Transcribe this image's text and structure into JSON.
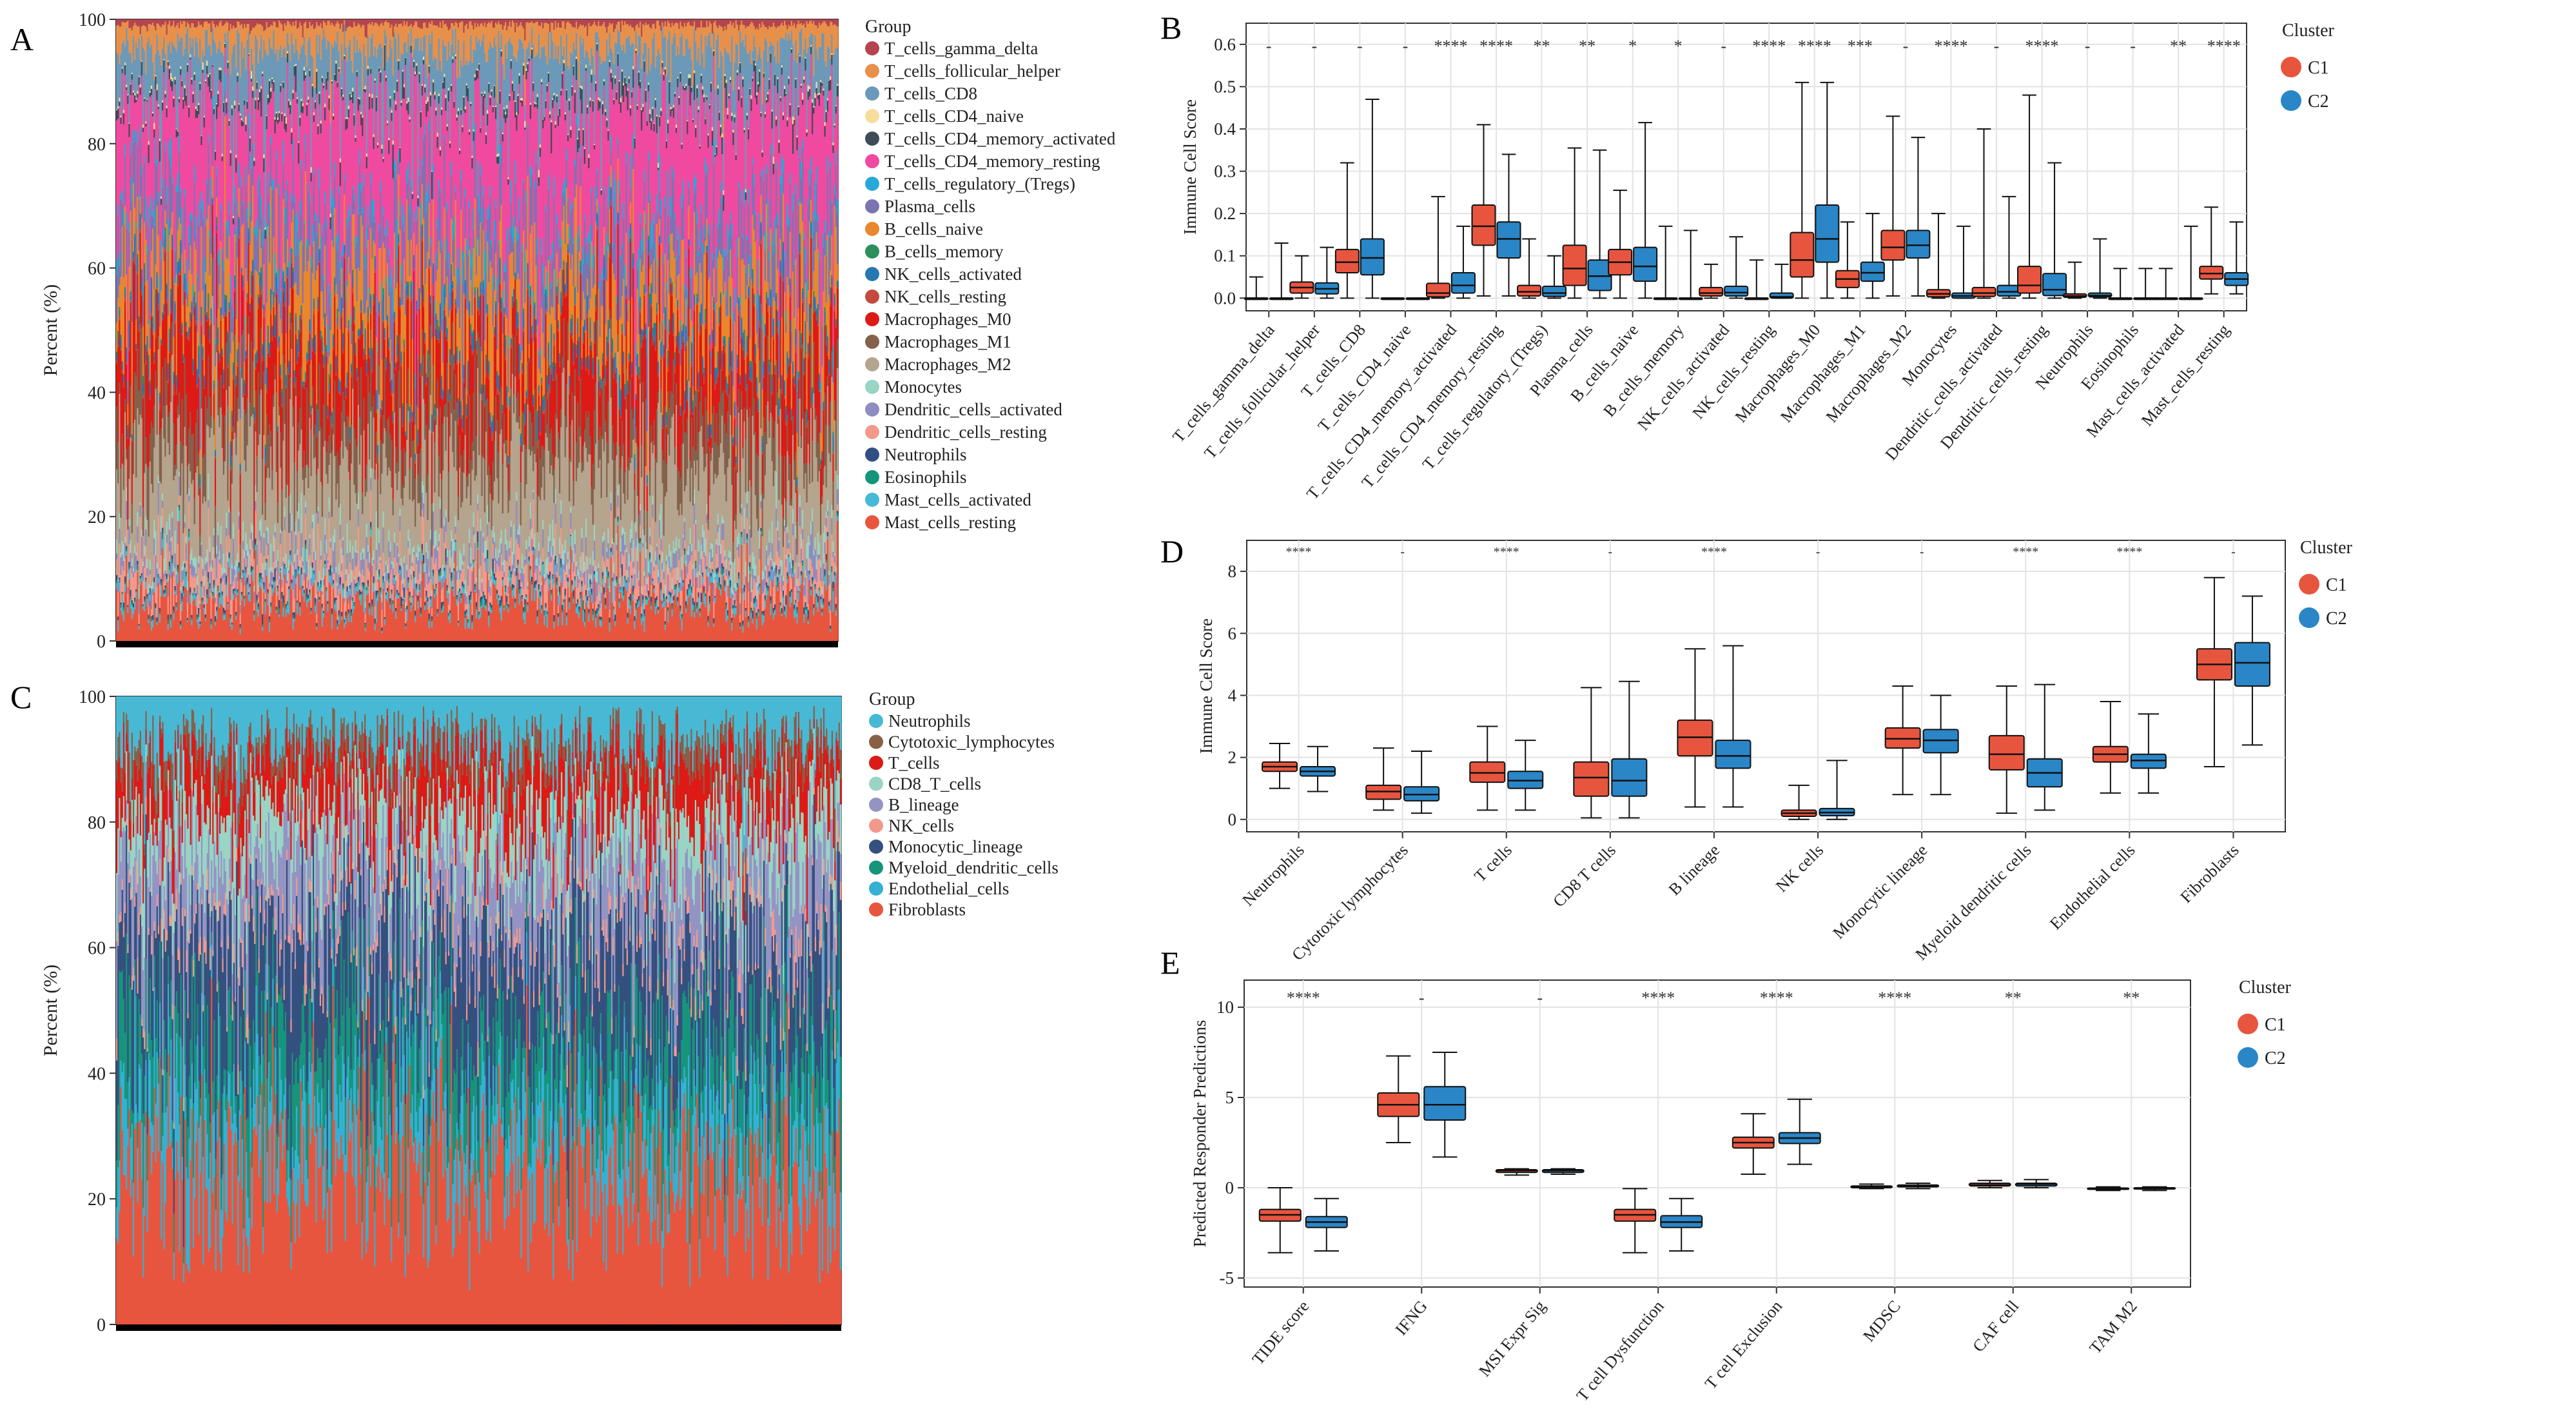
{
  "panel_letters": {
    "a": "A",
    "b": "B",
    "c": "C",
    "d": "D",
    "e": "E"
  },
  "colors": {
    "c1": "#E8553E",
    "c2": "#2A86C7",
    "grid": "#e3e3e3",
    "axis": "#333333",
    "tick_band": "#000000"
  },
  "chart_data": [
    {
      "id": "A",
      "type": "bar",
      "stacked": true,
      "ylabel": "Percent (%)",
      "ylim": [
        0,
        100
      ],
      "yticks": [
        0,
        20,
        40,
        60,
        80,
        100
      ],
      "n_samples": 520,
      "legend_title": "Group",
      "legend_position": "right",
      "groups": [
        {
          "name": "T_cells_gamma_delta",
          "color": "#B4454F",
          "mean": 0.8
        },
        {
          "name": "T_cells_follicular_helper",
          "color": "#E8904A",
          "mean": 3.5
        },
        {
          "name": "T_cells_CD8",
          "color": "#6D99B8",
          "mean": 7.0
        },
        {
          "name": "T_cells_CD4_naive",
          "color": "#F6DD9B",
          "mean": 0.3
        },
        {
          "name": "T_cells_CD4_memory_activated",
          "color": "#3D4C56",
          "mean": 1.2
        },
        {
          "name": "T_cells_CD4_memory_resting",
          "color": "#F04AA0",
          "mean": 16.0
        },
        {
          "name": "T_cells_regulatory_(Tregs)",
          "color": "#27A8D8",
          "mean": 1.8
        },
        {
          "name": "Plasma_cells",
          "color": "#7A75B2",
          "mean": 6.5
        },
        {
          "name": "B_cells_naive",
          "color": "#E8872E",
          "mean": 8.0
        },
        {
          "name": "B_cells_memory",
          "color": "#2E8F5A",
          "mean": 0.4
        },
        {
          "name": "NK_cells_activated",
          "color": "#2677B2",
          "mean": 1.5
        },
        {
          "name": "NK_cells_resting",
          "color": "#C24B3D",
          "mean": 0.5
        },
        {
          "name": "Macrophages_M0",
          "color": "#DD1A16",
          "mean": 10.0
        },
        {
          "name": "Macrophages_M1",
          "color": "#85614C",
          "mean": 6.0
        },
        {
          "name": "Macrophages_M2",
          "color": "#B5A48E",
          "mean": 12.5
        },
        {
          "name": "Monocytes",
          "color": "#99D4C4",
          "mean": 1.5
        },
        {
          "name": "Dendritic_cells_activated",
          "color": "#8E8CC0",
          "mean": 1.8
        },
        {
          "name": "Dendritic_cells_resting",
          "color": "#F3998B",
          "mean": 3.0
        },
        {
          "name": "Neutrophils",
          "color": "#314F82",
          "mean": 0.5
        },
        {
          "name": "Eosinophils",
          "color": "#17947C",
          "mean": 0.3
        },
        {
          "name": "Mast_cells_activated",
          "color": "#48B9D4",
          "mean": 1.0
        },
        {
          "name": "Mast_cells_resting",
          "color": "#E8553E",
          "mean": 5.5
        }
      ]
    },
    {
      "id": "B",
      "type": "box",
      "ylabel": "Immune Cell Score",
      "ylim": [
        -0.03,
        0.65
      ],
      "yticks": [
        "0.0",
        "0.1",
        "0.2",
        "0.3",
        "0.4",
        "0.5",
        "0.6"
      ],
      "legend_title": "Cluster",
      "series": [
        "C1",
        "C2"
      ],
      "categories": [
        "T_cells_gamma_delta",
        "T_cells_follicular_helper",
        "T_cells_CD8",
        "T_cells_CD4_naive",
        "T_cells_CD4_memory_activated",
        "T_cells_CD4_memory_resting",
        "T_cells_regulatory_(Tregs)",
        "Plasma_cells",
        "B_cells_naive",
        "B_cells_memory",
        "NK_cells_activated",
        "NK_cells_resting",
        "Macrophages_M0",
        "Macrophages_M1",
        "Macrophages_M2",
        "Monocytes",
        "Dendritic_cells_activated",
        "Dendritic_cells_resting",
        "Neutrophils",
        "Eosinophils",
        "Mast_cells_activated",
        "Mast_cells_resting"
      ],
      "significance": [
        "-",
        "-",
        "-",
        "-",
        "****",
        "****",
        "**",
        "**",
        "*",
        "*",
        "-",
        "****",
        "****",
        "***",
        "-",
        "****",
        "-",
        "****",
        "-",
        "-",
        "**",
        "****"
      ],
      "boxes": [
        [
          [
            0,
            0,
            0,
            0,
            0.05
          ],
          [
            0,
            0,
            0,
            0,
            0.13
          ]
        ],
        [
          [
            0,
            0.012,
            0.025,
            0.038,
            0.1
          ],
          [
            0,
            0.01,
            0.022,
            0.036,
            0.12
          ]
        ],
        [
          [
            0,
            0.06,
            0.085,
            0.115,
            0.32
          ],
          [
            0,
            0.055,
            0.095,
            0.14,
            0.47
          ]
        ],
        [
          [
            0,
            0,
            0,
            0,
            0
          ],
          [
            0,
            0,
            0,
            0,
            0
          ]
        ],
        [
          [
            0,
            0.003,
            0.012,
            0.035,
            0.24
          ],
          [
            0,
            0.012,
            0.03,
            0.06,
            0.17
          ]
        ],
        [
          [
            0.005,
            0.125,
            0.17,
            0.22,
            0.41
          ],
          [
            0.005,
            0.095,
            0.14,
            0.18,
            0.34
          ]
        ],
        [
          [
            0,
            0.005,
            0.015,
            0.03,
            0.14
          ],
          [
            0,
            0.004,
            0.012,
            0.028,
            0.1
          ]
        ],
        [
          [
            0,
            0.03,
            0.07,
            0.125,
            0.355
          ],
          [
            0,
            0.018,
            0.052,
            0.09,
            0.35
          ]
        ],
        [
          [
            0,
            0.055,
            0.085,
            0.115,
            0.255
          ],
          [
            0,
            0.04,
            0.075,
            0.12,
            0.415
          ]
        ],
        [
          [
            0,
            0,
            0,
            0,
            0.17
          ],
          [
            0,
            0,
            0,
            0,
            0.16
          ]
        ],
        [
          [
            0,
            0.005,
            0.012,
            0.025,
            0.08
          ],
          [
            0,
            0.005,
            0.013,
            0.028,
            0.145
          ]
        ],
        [
          [
            0,
            0,
            0,
            0,
            0.09
          ],
          [
            0,
            0,
            0.003,
            0.012,
            0.08
          ]
        ],
        [
          [
            0,
            0.05,
            0.09,
            0.155,
            0.51
          ],
          [
            0,
            0.085,
            0.14,
            0.22,
            0.51
          ]
        ],
        [
          [
            0,
            0.025,
            0.045,
            0.065,
            0.18
          ],
          [
            0,
            0.04,
            0.06,
            0.085,
            0.2
          ]
        ],
        [
          [
            0.005,
            0.09,
            0.12,
            0.16,
            0.43
          ],
          [
            0.005,
            0.095,
            0.125,
            0.16,
            0.38
          ]
        ],
        [
          [
            0,
            0.003,
            0.01,
            0.02,
            0.2
          ],
          [
            0,
            0,
            0.005,
            0.012,
            0.17
          ]
        ],
        [
          [
            0,
            0.004,
            0.012,
            0.025,
            0.4
          ],
          [
            0,
            0.005,
            0.015,
            0.03,
            0.24
          ]
        ],
        [
          [
            0,
            0.012,
            0.03,
            0.075,
            0.48
          ],
          [
            0,
            0.006,
            0.02,
            0.058,
            0.32
          ]
        ],
        [
          [
            0,
            0.002,
            0.005,
            0.01,
            0.085
          ],
          [
            0,
            0.003,
            0.006,
            0.012,
            0.14
          ]
        ],
        [
          [
            0,
            0,
            0,
            0,
            0.07
          ],
          [
            0,
            0,
            0,
            0,
            0.07
          ]
        ],
        [
          [
            0,
            0,
            0,
            0,
            0.07
          ],
          [
            0,
            0,
            0,
            0,
            0.17
          ]
        ],
        [
          [
            0.01,
            0.045,
            0.058,
            0.075,
            0.215
          ],
          [
            0.01,
            0.03,
            0.045,
            0.06,
            0.18
          ]
        ]
      ]
    },
    {
      "id": "C",
      "type": "bar",
      "stacked": true,
      "ylabel": "Percent (%)",
      "ylim": [
        0,
        100
      ],
      "yticks": [
        0,
        20,
        40,
        60,
        80,
        100
      ],
      "n_samples": 520,
      "legend_title": "Group",
      "legend_position": "right",
      "groups": [
        {
          "name": "Neutrophils",
          "color": "#48B9D4",
          "mean": 7.0
        },
        {
          "name": "Cytotoxic_lymphocytes",
          "color": "#8A5F48",
          "mean": 3.0
        },
        {
          "name": "T_cells",
          "color": "#DD1A16",
          "mean": 7.0
        },
        {
          "name": "CD8_T_cells",
          "color": "#99D4C4",
          "mean": 7.0
        },
        {
          "name": "B_lineage",
          "color": "#9494C4",
          "mean": 10.0
        },
        {
          "name": "NK_cells",
          "color": "#F3998B",
          "mean": 2.0
        },
        {
          "name": "Monocytic_lineage",
          "color": "#34507E",
          "mean": 14.0
        },
        {
          "name": "Myeloid_dendritic_cells",
          "color": "#17947C",
          "mean": 10.0
        },
        {
          "name": "Endothelial_cells",
          "color": "#36B0D2",
          "mean": 9.0
        },
        {
          "name": "Fibroblasts",
          "color": "#E8553E",
          "mean": 22.0
        }
      ]
    },
    {
      "id": "D",
      "type": "box",
      "ylabel": "Immune Cell Score",
      "ylim": [
        -0.4,
        9.0
      ],
      "yticks": [
        "0",
        "2",
        "4",
        "6",
        "8"
      ],
      "legend_title": "Cluster",
      "series": [
        "C1",
        "C2"
      ],
      "categories": [
        "Neutrophils",
        "Cytotoxic lymphocytes",
        "T cells",
        "CD8 T cells",
        "B lineage",
        "NK cells",
        "Monocytic lineage",
        "Myeloid dendritic cells",
        "Endothelial cells",
        "Fibroblasts"
      ],
      "significance": [
        "****",
        "-",
        "****",
        "-",
        "****",
        "-",
        "-",
        "****",
        "****",
        "-"
      ],
      "boxes": [
        [
          [
            1.0,
            1.55,
            1.7,
            1.85,
            2.45
          ],
          [
            0.9,
            1.4,
            1.55,
            1.7,
            2.35
          ]
        ],
        [
          [
            0.3,
            0.65,
            0.9,
            1.1,
            2.3
          ],
          [
            0.2,
            0.6,
            0.8,
            1.05,
            2.2
          ]
        ],
        [
          [
            0.3,
            1.2,
            1.5,
            1.85,
            3.0
          ],
          [
            0.3,
            1.0,
            1.25,
            1.55,
            2.55
          ]
        ],
        [
          [
            0.05,
            0.75,
            1.35,
            1.85,
            4.25
          ],
          [
            0.05,
            0.75,
            1.25,
            1.95,
            4.45
          ]
        ],
        [
          [
            0.4,
            2.05,
            2.65,
            3.2,
            5.5
          ],
          [
            0.4,
            1.65,
            2.05,
            2.55,
            5.6
          ]
        ],
        [
          [
            0.0,
            0.1,
            0.2,
            0.3,
            1.1
          ],
          [
            0.0,
            0.12,
            0.22,
            0.35,
            1.9
          ]
        ],
        [
          [
            0.8,
            2.3,
            2.6,
            2.95,
            4.3
          ],
          [
            0.8,
            2.15,
            2.55,
            2.9,
            4.0
          ]
        ],
        [
          [
            0.2,
            1.6,
            2.1,
            2.7,
            4.3
          ],
          [
            0.3,
            1.05,
            1.5,
            1.95,
            4.35
          ]
        ],
        [
          [
            0.85,
            1.85,
            2.1,
            2.35,
            3.8
          ],
          [
            0.85,
            1.65,
            1.9,
            2.1,
            3.4
          ]
        ],
        [
          [
            1.7,
            4.5,
            5.0,
            5.5,
            7.8
          ],
          [
            2.4,
            4.3,
            5.05,
            5.7,
            7.2
          ]
        ]
      ]
    },
    {
      "id": "E",
      "type": "box",
      "ylabel": "Predicted Responder Predictions",
      "ylim": [
        -5.5,
        11.5
      ],
      "yticks": [
        "-5",
        "0",
        "5",
        "10"
      ],
      "legend_title": "Cluster",
      "series": [
        "C1",
        "C2"
      ],
      "categories": [
        "TIDE score",
        "IFNG",
        "MSI Expr Sig",
        "T cell Dysfunction",
        "T cell Exclusion",
        "MDSC",
        "CAF cell",
        "TAM M2"
      ],
      "significance": [
        "****",
        "-",
        "-",
        "****",
        "****",
        "****",
        "**",
        "**"
      ],
      "boxes": [
        [
          [
            -3.6,
            -1.85,
            -1.5,
            -1.2,
            0.0
          ],
          [
            -3.5,
            -2.2,
            -1.9,
            -1.6,
            -0.6
          ]
        ],
        [
          [
            2.5,
            3.95,
            4.6,
            5.25,
            7.3
          ],
          [
            1.7,
            3.75,
            4.6,
            5.6,
            7.5
          ]
        ],
        [
          [
            0.7,
            0.85,
            0.95,
            1.0,
            1.05
          ],
          [
            0.75,
            0.85,
            0.95,
            1.0,
            1.05
          ]
        ],
        [
          [
            -3.6,
            -1.85,
            -1.5,
            -1.2,
            -0.05
          ],
          [
            -3.5,
            -2.2,
            -1.9,
            -1.55,
            -0.6
          ]
        ],
        [
          [
            0.75,
            2.2,
            2.5,
            2.8,
            4.1
          ],
          [
            1.3,
            2.45,
            2.75,
            3.05,
            4.9
          ]
        ],
        [
          [
            -0.05,
            0.0,
            0.05,
            0.1,
            0.2
          ],
          [
            -0.05,
            0.05,
            0.1,
            0.15,
            0.25
          ]
        ],
        [
          [
            0.0,
            0.1,
            0.15,
            0.25,
            0.4
          ],
          [
            0.0,
            0.1,
            0.2,
            0.25,
            0.45
          ]
        ],
        [
          [
            -0.15,
            -0.08,
            -0.05,
            -0.02,
            0.05
          ],
          [
            -0.15,
            -0.06,
            -0.03,
            0.0,
            0.05
          ]
        ]
      ]
    }
  ]
}
